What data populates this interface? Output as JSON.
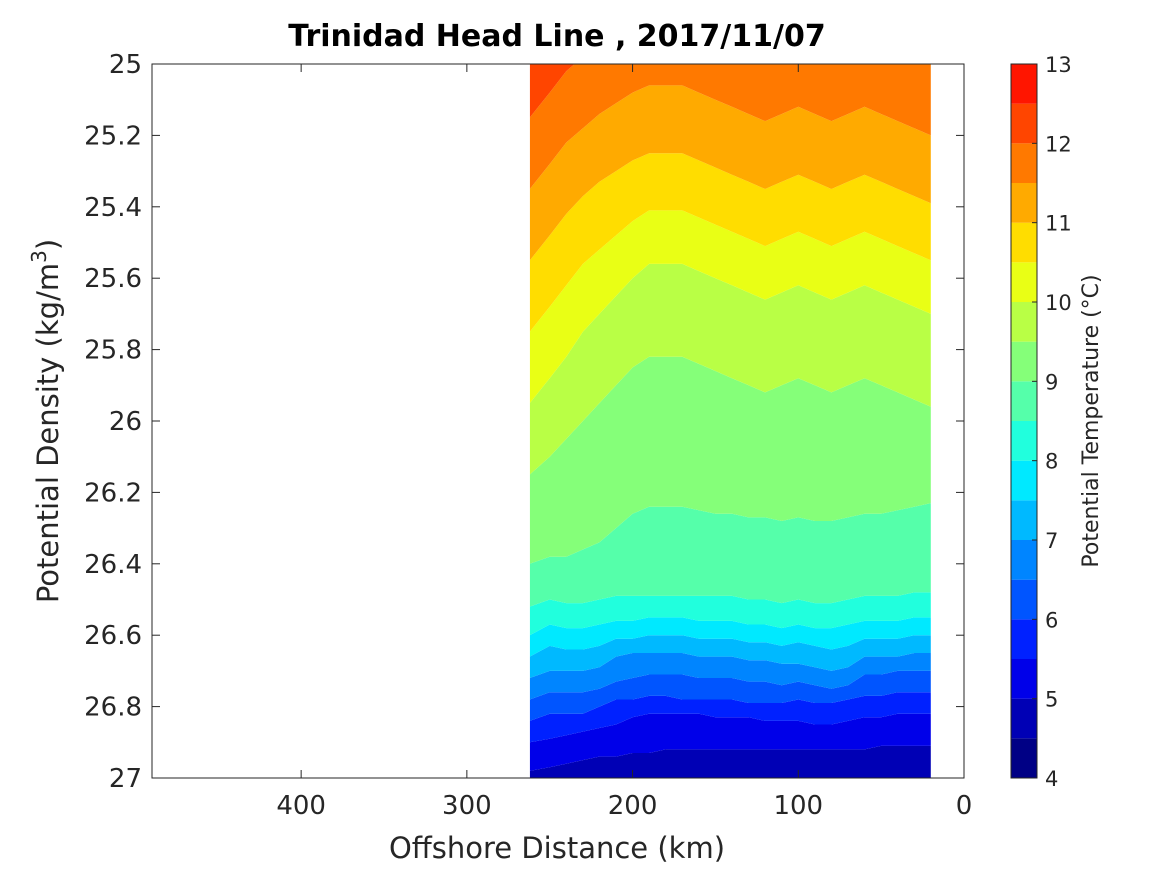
{
  "chart_data": {
    "type": "contour",
    "title": "Trinidad Head Line , 2017/11/07",
    "xlabel": "Offshore Distance (km)",
    "ylabel_main": "Potential Density (kg/m",
    "ylabel_sup": "3",
    "ylabel_end": ")",
    "colorbar_label": "Potential Temperature (°C)",
    "x_reversed": true,
    "xlim": [
      490,
      0
    ],
    "ylim": [
      25,
      27
    ],
    "y_reversed": true,
    "xticks": [
      400,
      300,
      200,
      100,
      0
    ],
    "xtick_labels": [
      "400",
      "300",
      "200",
      "100",
      "0"
    ],
    "yticks": [
      25,
      25.2,
      25.4,
      25.6,
      25.8,
      26,
      26.2,
      26.4,
      26.6,
      26.8,
      27
    ],
    "ytick_labels": [
      "25",
      "25.2",
      "25.4",
      "25.6",
      "25.8",
      "26",
      "26.2",
      "26.4",
      "26.6",
      "26.8",
      "27"
    ],
    "colorbar_ticks": [
      4,
      5,
      6,
      7,
      8,
      9,
      10,
      11,
      12,
      13
    ],
    "colorbar_tick_labels": [
      "4",
      "5",
      "6",
      "7",
      "8",
      "9",
      "10",
      "11",
      "12",
      "13"
    ],
    "colorbar_range": [
      4,
      13
    ],
    "contour_levels": [
      4,
      4.5,
      5,
      5.5,
      6,
      6.5,
      7,
      7.5,
      8,
      8.5,
      9,
      9.5,
      10,
      10.5,
      11,
      11.5,
      12,
      12.5,
      13
    ],
    "level_colors": [
      "#000085",
      "#0000b5",
      "#0000e9",
      "#0021ff",
      "#0055ff",
      "#0085ff",
      "#00b9ff",
      "#00e9ff",
      "#21ffdd",
      "#55ffaa",
      "#85ff79",
      "#b9ff45",
      "#e9ff15",
      "#ffdd00",
      "#ffaa00",
      "#ff7900",
      "#ff4500",
      "#ff1500",
      "#dd0000"
    ],
    "data_extent_x": [
      262,
      20
    ],
    "data_extent_y": [
      25,
      26.96
    ],
    "distances_km": [
      262,
      250,
      240,
      230,
      220,
      210,
      200,
      190,
      180,
      170,
      160,
      150,
      140,
      130,
      120,
      110,
      100,
      90,
      80,
      70,
      60,
      50,
      40,
      30,
      20
    ],
    "isotherm_depths": {
      "description": "Potential density (kg/m3) at which each isotherm lies, per distance column",
      "levels": [
        5,
        5.5,
        6,
        6.5,
        7,
        7.5,
        8,
        8.5,
        9,
        9.5,
        10,
        10.5,
        11,
        11.5,
        12,
        12.5
      ],
      "sigma": [
        [
          26.98,
          26.97,
          26.96,
          26.95,
          26.94,
          26.94,
          26.93,
          26.93,
          26.92,
          26.92,
          26.92,
          26.92,
          26.92,
          26.92,
          26.92,
          26.92,
          26.92,
          26.92,
          26.92,
          26.92,
          26.92,
          26.91,
          26.91,
          26.91,
          26.91
        ],
        [
          26.9,
          26.89,
          26.88,
          26.87,
          26.86,
          26.85,
          26.83,
          26.82,
          26.82,
          26.82,
          26.82,
          26.83,
          26.83,
          26.83,
          26.84,
          26.84,
          26.84,
          26.85,
          26.85,
          26.84,
          26.83,
          26.83,
          26.82,
          26.82,
          26.82
        ],
        [
          26.84,
          26.82,
          26.82,
          26.82,
          26.8,
          26.78,
          26.78,
          26.77,
          26.77,
          26.78,
          26.78,
          26.78,
          26.78,
          26.79,
          26.79,
          26.79,
          26.78,
          26.79,
          26.79,
          26.78,
          26.77,
          26.77,
          26.76,
          26.76,
          26.76
        ],
        [
          26.78,
          26.76,
          26.76,
          26.76,
          26.75,
          26.73,
          26.72,
          26.71,
          26.71,
          26.71,
          26.72,
          26.72,
          26.72,
          26.73,
          26.73,
          26.74,
          26.73,
          26.74,
          26.75,
          26.74,
          26.71,
          26.71,
          26.7,
          26.7,
          26.7
        ],
        [
          26.72,
          26.7,
          26.7,
          26.7,
          26.69,
          26.66,
          26.65,
          26.65,
          26.65,
          26.65,
          26.66,
          26.66,
          26.66,
          26.67,
          26.67,
          26.68,
          26.68,
          26.69,
          26.7,
          26.69,
          26.66,
          26.66,
          26.66,
          26.65,
          26.65
        ],
        [
          26.66,
          26.63,
          26.64,
          26.64,
          26.63,
          26.61,
          26.61,
          26.6,
          26.6,
          26.6,
          26.61,
          26.61,
          26.61,
          26.62,
          26.62,
          26.63,
          26.62,
          26.63,
          26.64,
          26.63,
          26.61,
          26.61,
          26.61,
          26.6,
          26.6
        ],
        [
          26.6,
          26.57,
          26.58,
          26.58,
          26.57,
          26.56,
          26.56,
          26.55,
          26.55,
          26.55,
          26.56,
          26.56,
          26.56,
          26.57,
          26.57,
          26.58,
          26.57,
          26.58,
          26.58,
          26.57,
          26.56,
          26.56,
          26.56,
          26.55,
          26.55
        ],
        [
          26.52,
          26.5,
          26.51,
          26.51,
          26.5,
          26.49,
          26.49,
          26.49,
          26.49,
          26.49,
          26.49,
          26.49,
          26.49,
          26.5,
          26.5,
          26.51,
          26.5,
          26.51,
          26.51,
          26.5,
          26.49,
          26.49,
          26.49,
          26.48,
          26.48
        ],
        [
          26.4,
          26.38,
          26.38,
          26.36,
          26.34,
          26.3,
          26.26,
          26.24,
          26.24,
          26.24,
          26.25,
          26.26,
          26.26,
          26.27,
          26.27,
          26.28,
          26.27,
          26.28,
          26.28,
          26.27,
          26.26,
          26.26,
          26.25,
          26.24,
          26.23
        ],
        [
          26.15,
          26.1,
          26.05,
          26.0,
          25.95,
          25.9,
          25.85,
          25.82,
          25.82,
          25.82,
          25.84,
          25.86,
          25.88,
          25.9,
          25.92,
          25.9,
          25.88,
          25.9,
          25.92,
          25.9,
          25.88,
          25.9,
          25.92,
          25.94,
          25.96
        ],
        [
          25.95,
          25.88,
          25.82,
          25.75,
          25.7,
          25.65,
          25.6,
          25.56,
          25.56,
          25.56,
          25.58,
          25.6,
          25.62,
          25.64,
          25.66,
          25.64,
          25.62,
          25.64,
          25.66,
          25.64,
          25.62,
          25.64,
          25.66,
          25.68,
          25.7
        ],
        [
          25.75,
          25.68,
          25.62,
          25.56,
          25.52,
          25.48,
          25.44,
          25.41,
          25.41,
          25.41,
          25.43,
          25.45,
          25.47,
          25.49,
          25.51,
          25.49,
          25.47,
          25.49,
          25.51,
          25.49,
          25.47,
          25.49,
          25.51,
          25.53,
          25.55
        ],
        [
          25.55,
          25.48,
          25.42,
          25.37,
          25.33,
          25.3,
          25.27,
          25.25,
          25.25,
          25.25,
          25.27,
          25.29,
          25.31,
          25.33,
          25.35,
          25.33,
          25.31,
          25.33,
          25.35,
          25.33,
          25.31,
          25.33,
          25.35,
          25.37,
          25.39
        ],
        [
          25.35,
          25.28,
          25.22,
          25.18,
          25.14,
          25.11,
          25.08,
          25.06,
          25.06,
          25.06,
          25.08,
          25.1,
          25.12,
          25.14,
          25.16,
          25.14,
          25.12,
          25.14,
          25.16,
          25.14,
          25.12,
          25.14,
          25.16,
          25.18,
          25.2
        ],
        [
          25.15,
          25.08,
          25.02,
          24.98,
          24.94,
          24.91,
          24.88,
          24.86,
          24.86,
          24.86,
          24.88,
          24.9,
          24.92,
          24.94,
          24.96,
          24.94,
          24.92,
          24.94,
          24.96,
          24.94,
          24.92,
          24.94,
          24.96,
          24.98,
          25.0
        ],
        [
          24.95,
          24.88,
          24.82,
          24.78,
          24.74,
          24.71,
          24.68,
          24.66,
          24.66,
          24.66,
          24.68,
          24.7,
          24.72,
          24.74,
          24.76,
          24.74,
          24.72,
          24.74,
          24.76,
          24.74,
          24.72,
          24.74,
          24.76,
          24.78,
          24.8
        ]
      ]
    },
    "colors": {
      "axis": "#262626",
      "background": "#ffffff"
    }
  }
}
